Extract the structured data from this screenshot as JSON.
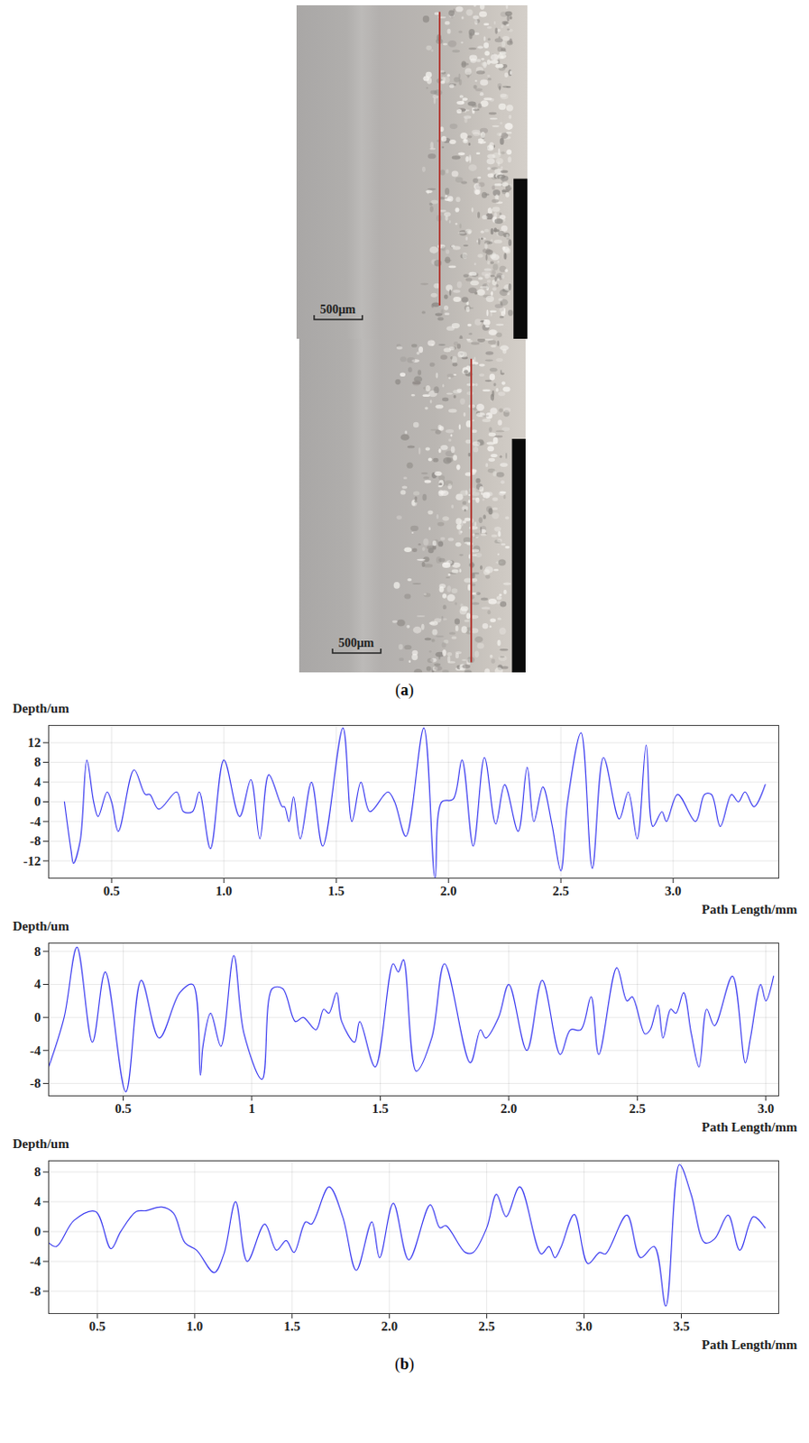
{
  "figure": {
    "panels": [
      {
        "label": "(a)",
        "images": [
          {
            "scale_bar": "500μm"
          },
          {
            "scale_bar": "500μm"
          }
        ]
      },
      {
        "label": "(b)"
      }
    ]
  },
  "chart_data": [
    {
      "type": "line",
      "x_label": "Path Length/mm",
      "y_label": "Depth/um",
      "color": "#3c3cf0",
      "grid": true,
      "xlim": [
        0.22,
        3.47
      ],
      "ylim": [
        -15.5,
        15.5
      ],
      "xticks": [
        0.5,
        {
          "value": 1,
          "label": "1.0"
        },
        1.5,
        {
          "value": 2,
          "label": "2.0"
        },
        2.5,
        {
          "value": 3,
          "label": "3.0"
        }
      ],
      "yticks": [
        -12,
        -8,
        -4,
        0,
        4,
        8,
        12
      ],
      "x": [
        0.29,
        0.32,
        0.33,
        0.36,
        0.39,
        0.42,
        0.44,
        0.48,
        0.5,
        0.53,
        0.6,
        0.65,
        0.67,
        0.71,
        0.79,
        0.82,
        0.86,
        0.89,
        0.94,
        1.0,
        1.07,
        1.12,
        1.16,
        1.2,
        1.26,
        1.27,
        1.29,
        1.31,
        1.34,
        1.39,
        1.44,
        1.53,
        1.57,
        1.61,
        1.65,
        1.73,
        1.76,
        1.81,
        1.89,
        1.94,
        1.97,
        2.02,
        2.06,
        2.11,
        2.16,
        2.21,
        2.25,
        2.31,
        2.35,
        2.38,
        2.42,
        2.46,
        2.5,
        2.53,
        2.59,
        2.64,
        2.69,
        2.76,
        2.8,
        2.84,
        2.88,
        2.91,
        2.95,
        2.97,
        3.02,
        3.1,
        3.14,
        3.17,
        3.21,
        3.26,
        3.29,
        3.32,
        3.36,
        3.41
      ],
      "values": [
        0,
        -10,
        -12.5,
        -8,
        8.5,
        0,
        -3,
        2,
        0,
        -6,
        6.5,
        1.5,
        1.5,
        -1.5,
        2,
        -2,
        -2,
        2,
        -9.5,
        8.5,
        -3,
        4.5,
        -7.5,
        5.5,
        -1,
        -1,
        -4,
        1,
        -7.5,
        4,
        -9,
        15,
        -4,
        4,
        -2,
        2,
        0,
        -7,
        15,
        -15.5,
        0,
        0.5,
        8.5,
        -9,
        9,
        -4.5,
        3.5,
        -6,
        7,
        -4,
        3,
        -4.5,
        -14,
        0,
        14,
        -13.5,
        9,
        -3.5,
        2,
        -7.5,
        11.5,
        -5,
        -2,
        -4,
        1.5,
        -4,
        1.5,
        1.5,
        -5,
        1.5,
        0,
        2,
        -1,
        3.5
      ]
    },
    {
      "type": "line",
      "x_label": "Path Length/mm",
      "y_label": "Depth/um",
      "color": "#3c3cf0",
      "grid": true,
      "xlim": [
        0.21,
        3.05
      ],
      "ylim": [
        -9.5,
        9
      ],
      "xticks": [
        0.5,
        1,
        1.5,
        {
          "value": 2,
          "label": "2.0"
        },
        2.5,
        {
          "value": 3,
          "label": "3.0"
        }
      ],
      "yticks": [
        -8,
        -4,
        0,
        4,
        8
      ],
      "x": [
        0.21,
        0.27,
        0.32,
        0.38,
        0.43,
        0.51,
        0.57,
        0.64,
        0.72,
        0.77,
        0.8,
        0.81,
        0.84,
        0.88,
        0.93,
        0.97,
        1.04,
        1.08,
        1.12,
        1.17,
        1.2,
        1.25,
        1.28,
        1.3,
        1.33,
        1.35,
        1.4,
        1.42,
        1.48,
        1.55,
        1.57,
        1.59,
        1.64,
        1.7,
        1.75,
        1.85,
        1.89,
        1.91,
        1.96,
        2.0,
        2.07,
        2.13,
        2.2,
        2.24,
        2.28,
        2.32,
        2.35,
        2.42,
        2.46,
        2.48,
        2.53,
        2.55,
        2.58,
        2.6,
        2.63,
        2.65,
        2.68,
        2.71,
        2.74,
        2.77,
        2.8,
        2.87,
        2.92,
        2.94,
        2.98,
        3.0,
        3.03
      ],
      "values": [
        -6,
        0,
        8.5,
        -3,
        5.5,
        -9,
        4.5,
        -2.5,
        3,
        4,
        -7,
        -3.5,
        0.5,
        -3.5,
        7.5,
        -2,
        -7.5,
        3.5,
        3.5,
        -0.5,
        0,
        -1.5,
        1,
        0.5,
        3,
        -0.5,
        -3,
        -0.5,
        -6,
        6.5,
        5.5,
        7,
        -6.5,
        -2.5,
        6.5,
        -5.5,
        -1.5,
        -2.5,
        0,
        4,
        -4,
        4.5,
        -4.5,
        -1.5,
        -1.5,
        2.5,
        -4.5,
        6,
        2,
        2.5,
        -2,
        -1.5,
        1.5,
        -2.5,
        1,
        0.5,
        3,
        -2,
        -6,
        1,
        -1,
        5,
        -5.5,
        -2.5,
        4,
        2,
        5
      ]
    },
    {
      "type": "line",
      "x_label": "Path Length/mm",
      "y_label": "Depth/um",
      "color": "#3c3cf0",
      "grid": true,
      "xlim": [
        0.25,
        4.0
      ],
      "ylim": [
        -11,
        9.5
      ],
      "xticks": [
        0.5,
        {
          "value": 1,
          "label": "1.0"
        },
        1.5,
        {
          "value": 2,
          "label": "2.0"
        },
        2.5,
        {
          "value": 3,
          "label": "3.0"
        },
        3.5
      ],
      "yticks": [
        -8,
        -4,
        0,
        4,
        8
      ],
      "x": [
        0.25,
        0.29,
        0.38,
        0.49,
        0.57,
        0.62,
        0.7,
        0.75,
        0.83,
        0.89,
        0.95,
        1.01,
        1.1,
        1.15,
        1.21,
        1.27,
        1.36,
        1.42,
        1.47,
        1.51,
        1.57,
        1.6,
        1.69,
        1.76,
        1.83,
        1.91,
        1.95,
        2.02,
        2.1,
        2.21,
        2.26,
        2.29,
        2.39,
        2.43,
        2.5,
        2.55,
        2.6,
        2.67,
        2.78,
        2.82,
        2.85,
        2.88,
        2.95,
        3.02,
        3.08,
        3.11,
        3.22,
        3.29,
        3.36,
        3.42,
        3.49,
        3.55,
        3.62,
        3.67,
        3.74,
        3.8,
        3.87,
        3.93
      ],
      "values": [
        -1.5,
        -2,
        1.5,
        2.7,
        -2.3,
        0,
        2.7,
        2.8,
        3.3,
        2.5,
        -1.5,
        -2.5,
        -5.5,
        -3,
        4,
        -4,
        1,
        -2.5,
        -1.2,
        -2.8,
        1.3,
        1,
        6,
        2,
        -5.2,
        1.3,
        -3.5,
        3.8,
        -3.8,
        3.6,
        0.5,
        0.8,
        -2.8,
        -2.8,
        0.5,
        5,
        2,
        6,
        -3,
        -2,
        -3.5,
        -2.2,
        2.3,
        -4.3,
        -2.8,
        -3,
        2.2,
        -3.5,
        -2,
        -10,
        9,
        5,
        -1.5,
        -1,
        2.2,
        -2.5,
        2,
        0.5
      ]
    }
  ]
}
